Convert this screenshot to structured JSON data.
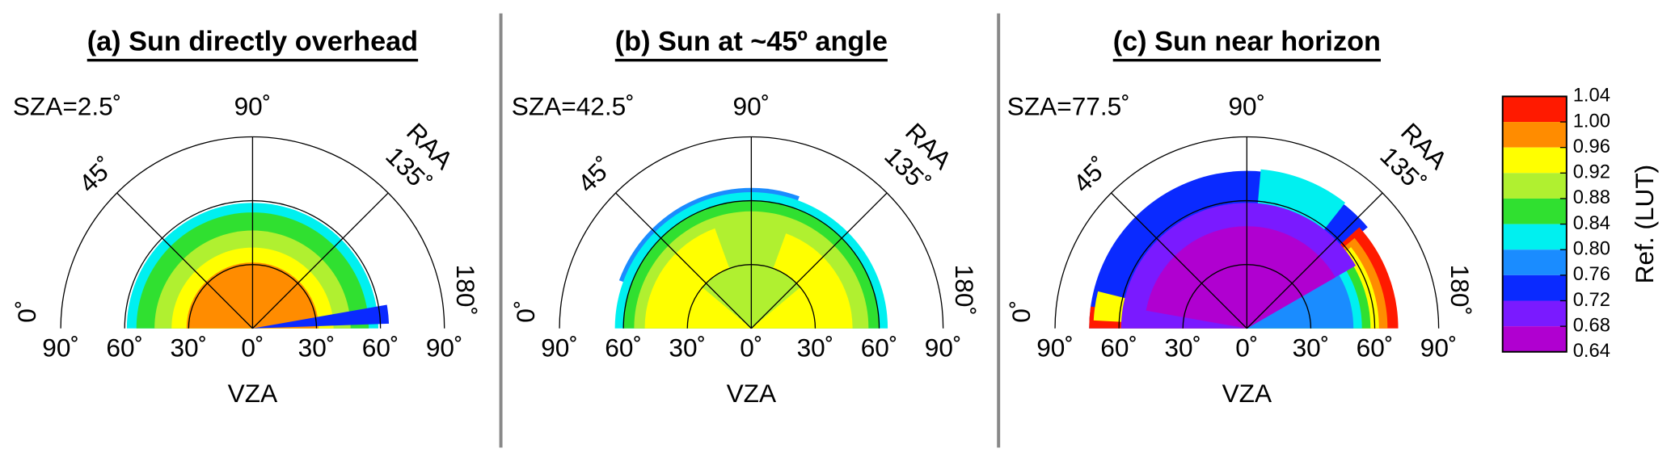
{
  "panels": [
    {
      "title": "(a) Sun directly overhead",
      "sza": "SZA=2.5˚",
      "top": "90˚",
      "left45": "45˚",
      "raa": "RAA",
      "right135": "135˚",
      "right180": "180˚",
      "left0": "0˚",
      "vza_ticks": [
        "90˚",
        "60˚",
        "30˚",
        "0˚",
        "30˚",
        "60˚",
        "90˚"
      ],
      "xlabel": "VZA"
    },
    {
      "title": "(b) Sun at ~45º angle",
      "sza": "SZA=42.5˚",
      "top": "90˚",
      "left45": "45˚",
      "raa": "RAA",
      "right135": "135˚",
      "right180": "180˚",
      "left0": "0˚",
      "vza_ticks": [
        "90˚",
        "60˚",
        "30˚",
        "0˚",
        "30˚",
        "60˚",
        "90˚"
      ],
      "xlabel": "VZA"
    },
    {
      "title": "(c) Sun near horizon",
      "sza": "SZA=77.5˚",
      "top": "90˚",
      "left45": "45˚",
      "raa": "RAA",
      "right135": "135˚",
      "right180": "180˚",
      "left0": "0˚",
      "vza_ticks": [
        "90˚",
        "60˚",
        "30˚",
        "0˚",
        "30˚",
        "60˚",
        "90˚"
      ],
      "xlabel": "VZA"
    }
  ],
  "colorbar": {
    "label": "Ref. (LUT)",
    "ylim": [
      0.64,
      1.04
    ],
    "ticks": [
      1.04,
      {
        "value": 1,
        "label": "1.00"
      },
      0.96,
      0.92,
      0.88,
      0.84,
      {
        "value": 0.8,
        "label": "0.80"
      },
      0.76,
      0.72,
      0.68,
      0.64
    ],
    "colors": [
      "#ff1a00",
      "#ff8c00",
      "#ffff00",
      "#b0f030",
      "#30e030",
      "#00f0f0",
      "#1a8cff",
      "#0a2aff",
      "#7a1aff",
      "#b000d0"
    ]
  }
}
